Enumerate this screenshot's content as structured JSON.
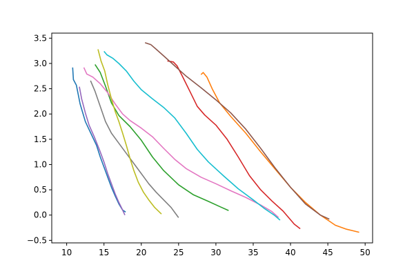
{
  "chart_data": {
    "type": "line",
    "title": "",
    "xlabel": "",
    "ylabel": "",
    "xlim": [
      8.0,
      51.0
    ],
    "ylim": [
      -0.55,
      3.6
    ],
    "grid": false,
    "legend": "none",
    "x_ticks": [
      10,
      15,
      20,
      25,
      30,
      35,
      40,
      45,
      50
    ],
    "y_ticks": [
      -0.5,
      0.0,
      0.5,
      1.0,
      1.5,
      2.0,
      2.5,
      3.0,
      3.5
    ],
    "x_tick_labels": [
      "10",
      "15",
      "20",
      "25",
      "30",
      "35",
      "40",
      "45",
      "50"
    ],
    "y_tick_labels": [
      "−0.5",
      "0.0",
      "0.5",
      "1.0",
      "1.5",
      "2.0",
      "2.5",
      "3.0",
      "3.5"
    ],
    "series": [
      {
        "color": "#1f77b4",
        "points": [
          [
            10.8,
            2.92
          ],
          [
            10.9,
            2.68
          ],
          [
            11.3,
            2.57
          ],
          [
            11.8,
            2.2
          ],
          [
            12.5,
            1.85
          ],
          [
            13.3,
            1.6
          ],
          [
            14.0,
            1.38
          ],
          [
            14.5,
            1.15
          ],
          [
            15.0,
            0.95
          ],
          [
            15.5,
            0.75
          ],
          [
            16.0,
            0.55
          ],
          [
            16.5,
            0.38
          ],
          [
            17.0,
            0.22
          ],
          [
            17.5,
            0.1
          ],
          [
            17.9,
            0.06
          ]
        ]
      },
      {
        "color": "#ff7f0e",
        "points": [
          [
            28.0,
            2.78
          ],
          [
            28.3,
            2.82
          ],
          [
            28.8,
            2.73
          ],
          [
            29.5,
            2.5
          ],
          [
            30.5,
            2.22
          ],
          [
            32.0,
            1.95
          ],
          [
            34.0,
            1.62
          ],
          [
            36.0,
            1.25
          ],
          [
            38.0,
            0.9
          ],
          [
            40.0,
            0.55
          ],
          [
            42.0,
            0.25
          ],
          [
            44.0,
            0.0
          ],
          [
            45.0,
            -0.1
          ],
          [
            46.0,
            -0.2
          ],
          [
            47.5,
            -0.28
          ],
          [
            49.2,
            -0.34
          ]
        ]
      },
      {
        "color": "#2ca02c",
        "points": [
          [
            13.8,
            2.98
          ],
          [
            14.5,
            2.82
          ],
          [
            15.2,
            2.55
          ],
          [
            16.0,
            2.22
          ],
          [
            17.0,
            1.97
          ],
          [
            18.5,
            1.75
          ],
          [
            20.0,
            1.48
          ],
          [
            21.5,
            1.15
          ],
          [
            23.0,
            0.88
          ],
          [
            25.0,
            0.6
          ],
          [
            27.0,
            0.4
          ],
          [
            29.0,
            0.27
          ],
          [
            30.5,
            0.17
          ],
          [
            31.7,
            0.09
          ]
        ]
      },
      {
        "color": "#d62728",
        "points": [
          [
            23.5,
            3.05
          ],
          [
            24.3,
            3.03
          ],
          [
            24.8,
            2.95
          ],
          [
            25.5,
            2.75
          ],
          [
            26.5,
            2.45
          ],
          [
            27.5,
            2.15
          ],
          [
            28.5,
            1.98
          ],
          [
            30.0,
            1.78
          ],
          [
            31.5,
            1.5
          ],
          [
            33.0,
            1.15
          ],
          [
            34.5,
            0.78
          ],
          [
            36.0,
            0.5
          ],
          [
            37.5,
            0.28
          ],
          [
            39.0,
            0.08
          ],
          [
            40.5,
            -0.18
          ],
          [
            41.3,
            -0.27
          ]
        ]
      },
      {
        "color": "#9467bd",
        "points": [
          [
            11.7,
            2.54
          ],
          [
            12.0,
            2.3
          ],
          [
            12.5,
            2.02
          ],
          [
            13.0,
            1.78
          ],
          [
            13.7,
            1.55
          ],
          [
            14.5,
            1.25
          ],
          [
            15.0,
            1.05
          ],
          [
            15.5,
            0.82
          ],
          [
            16.0,
            0.62
          ],
          [
            16.5,
            0.42
          ],
          [
            17.0,
            0.25
          ],
          [
            17.5,
            0.1
          ],
          [
            17.8,
            0.0
          ]
        ]
      },
      {
        "color": "#8c564b",
        "points": [
          [
            20.5,
            3.41
          ],
          [
            21.3,
            3.37
          ],
          [
            22.0,
            3.28
          ],
          [
            23.0,
            3.15
          ],
          [
            24.5,
            2.95
          ],
          [
            26.0,
            2.75
          ],
          [
            28.0,
            2.52
          ],
          [
            30.0,
            2.28
          ],
          [
            32.0,
            2.02
          ],
          [
            34.0,
            1.7
          ],
          [
            36.0,
            1.32
          ],
          [
            38.0,
            0.92
          ],
          [
            40.0,
            0.55
          ],
          [
            42.0,
            0.22
          ],
          [
            44.0,
            0.0
          ],
          [
            45.2,
            -0.08
          ]
        ]
      },
      {
        "color": "#e377c2",
        "points": [
          [
            12.3,
            2.92
          ],
          [
            12.7,
            2.79
          ],
          [
            13.5,
            2.73
          ],
          [
            14.5,
            2.6
          ],
          [
            15.5,
            2.42
          ],
          [
            16.5,
            2.2
          ],
          [
            17.5,
            2.0
          ],
          [
            18.5,
            1.87
          ],
          [
            20.0,
            1.72
          ],
          [
            21.5,
            1.55
          ],
          [
            23.0,
            1.32
          ],
          [
            24.5,
            1.1
          ],
          [
            26.0,
            0.92
          ],
          [
            28.0,
            0.75
          ],
          [
            30.0,
            0.62
          ],
          [
            32.0,
            0.48
          ],
          [
            34.0,
            0.35
          ],
          [
            36.0,
            0.2
          ],
          [
            37.5,
            0.07
          ],
          [
            38.4,
            -0.05
          ]
        ]
      },
      {
        "color": "#7f7f7f",
        "points": [
          [
            13.2,
            2.66
          ],
          [
            13.8,
            2.45
          ],
          [
            14.5,
            2.15
          ],
          [
            15.2,
            1.85
          ],
          [
            16.0,
            1.62
          ],
          [
            17.0,
            1.42
          ],
          [
            18.0,
            1.22
          ],
          [
            19.0,
            1.02
          ],
          [
            20.0,
            0.82
          ],
          [
            21.0,
            0.62
          ],
          [
            22.0,
            0.45
          ],
          [
            23.0,
            0.3
          ],
          [
            24.0,
            0.15
          ],
          [
            25.0,
            -0.05
          ]
        ]
      },
      {
        "color": "#bcbd22",
        "points": [
          [
            14.2,
            3.28
          ],
          [
            14.6,
            3.05
          ],
          [
            15.1,
            2.85
          ],
          [
            15.5,
            2.58
          ],
          [
            16.0,
            2.3
          ],
          [
            16.5,
            2.05
          ],
          [
            17.0,
            1.85
          ],
          [
            17.5,
            1.62
          ],
          [
            18.0,
            1.38
          ],
          [
            18.5,
            1.12
          ],
          [
            19.0,
            0.88
          ],
          [
            19.6,
            0.65
          ],
          [
            20.3,
            0.45
          ],
          [
            21.0,
            0.3
          ],
          [
            21.8,
            0.15
          ],
          [
            22.7,
            0.02
          ]
        ]
      },
      {
        "color": "#17becf",
        "points": [
          [
            15.0,
            3.24
          ],
          [
            15.4,
            3.17
          ],
          [
            16.2,
            3.1
          ],
          [
            17.0,
            3.0
          ],
          [
            18.0,
            2.85
          ],
          [
            19.0,
            2.65
          ],
          [
            20.0,
            2.48
          ],
          [
            21.5,
            2.3
          ],
          [
            23.0,
            2.13
          ],
          [
            24.5,
            1.92
          ],
          [
            26.0,
            1.62
          ],
          [
            27.5,
            1.3
          ],
          [
            29.0,
            1.05
          ],
          [
            31.0,
            0.78
          ],
          [
            33.0,
            0.52
          ],
          [
            35.0,
            0.3
          ],
          [
            36.5,
            0.13
          ],
          [
            37.8,
            0.0
          ],
          [
            38.6,
            -0.1
          ]
        ]
      }
    ]
  }
}
